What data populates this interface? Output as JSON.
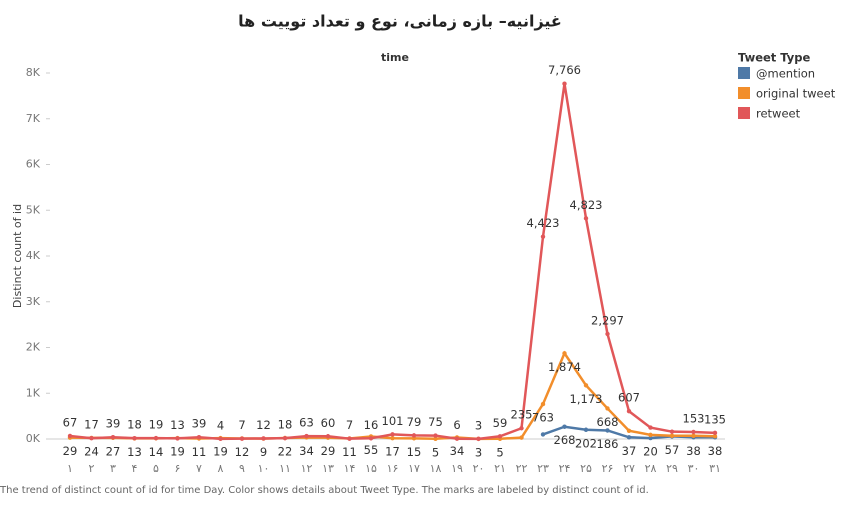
{
  "chart_data": {
    "type": "line",
    "title": "غیزانیه– بازه زمانی، نوع و تعداد توییت ها",
    "x_axis_label": "time",
    "y_axis_label": "Distinct count of id",
    "legend_title": "Tweet Type",
    "caption": "The trend of distinct count of id for time Day.  Color shows details about Tweet Type.  The marks are labeled by distinct count of id.",
    "categories": [
      "۱",
      "۲",
      "۳",
      "۴",
      "۵",
      "۶",
      "۷",
      "۸",
      "۹",
      "۱۰",
      "۱۱",
      "۱۲",
      "۱۳",
      "۱۴",
      "۱۵",
      "۱۶",
      "۱۷",
      "۱۸",
      "۱۹",
      "۲۰",
      "۲۱",
      "۲۲",
      "۲۳",
      "۲۴",
      "۲۵",
      "۲۶",
      "۲۷",
      "۲۸",
      "۲۹",
      "۳۰",
      "۳۱"
    ],
    "ylim": [
      0,
      8000
    ],
    "yticks": [
      {
        "value": 0,
        "label": "0K"
      },
      {
        "value": 1000,
        "label": "1K"
      },
      {
        "value": 2000,
        "label": "2K"
      },
      {
        "value": 3000,
        "label": "3K"
      },
      {
        "value": 4000,
        "label": "4K"
      },
      {
        "value": 5000,
        "label": "5K"
      },
      {
        "value": 6000,
        "label": "6K"
      },
      {
        "value": 7000,
        "label": "7K"
      },
      {
        "value": 8000,
        "label": "8K"
      }
    ],
    "legend_position": "right",
    "series": [
      {
        "name": "@mention",
        "color": "#4e79a7",
        "label_side": "below",
        "values": [
          null,
          null,
          null,
          null,
          null,
          null,
          null,
          null,
          null,
          null,
          null,
          null,
          null,
          null,
          null,
          null,
          null,
          null,
          null,
          null,
          null,
          null,
          100,
          268,
          202,
          186,
          37,
          20,
          57,
          38,
          38
        ],
        "value_labels": [
          null,
          null,
          null,
          null,
          null,
          null,
          null,
          null,
          null,
          null,
          null,
          null,
          null,
          null,
          null,
          null,
          null,
          null,
          null,
          null,
          null,
          null,
          null,
          "268",
          "202",
          "186",
          "37",
          "20",
          "57",
          "38",
          "38"
        ]
      },
      {
        "name": "original tweet",
        "color": "#f28e2b",
        "label_side": "below",
        "values": [
          29,
          24,
          27,
          13,
          14,
          19,
          11,
          19,
          12,
          9,
          22,
          34,
          29,
          11,
          55,
          17,
          15,
          5,
          34,
          3,
          5,
          30,
          763,
          1874,
          1173,
          668,
          180,
          90,
          70,
          70,
          60
        ],
        "value_labels": [
          "29",
          "24",
          "27",
          "13",
          "14",
          "19",
          "11",
          "19",
          "12",
          "9",
          "22",
          "34",
          "29",
          "11",
          "55",
          "17",
          "15",
          "5",
          "34",
          "3",
          "5",
          null,
          "763",
          "1,874",
          "1,173",
          "668",
          null,
          null,
          null,
          null,
          null
        ]
      },
      {
        "name": "retweet",
        "color": "#e15759",
        "label_side": "above",
        "values": [
          67,
          17,
          39,
          18,
          19,
          13,
          39,
          4,
          7,
          12,
          18,
          63,
          60,
          7,
          16,
          101,
          79,
          75,
          6,
          3,
          59,
          235,
          4423,
          7766,
          4823,
          2297,
          607,
          250,
          160,
          153,
          135
        ],
        "value_labels": [
          "67",
          "17",
          "39",
          "18",
          "19",
          "13",
          "39",
          "4",
          "7",
          "12",
          "18",
          "63",
          "60",
          "7",
          "16",
          "101",
          "79",
          "75",
          "6",
          "3",
          "59",
          "235",
          "4,423",
          "7,766",
          "4,823",
          "2,297",
          "607",
          null,
          null,
          "153",
          "135"
        ]
      }
    ]
  }
}
